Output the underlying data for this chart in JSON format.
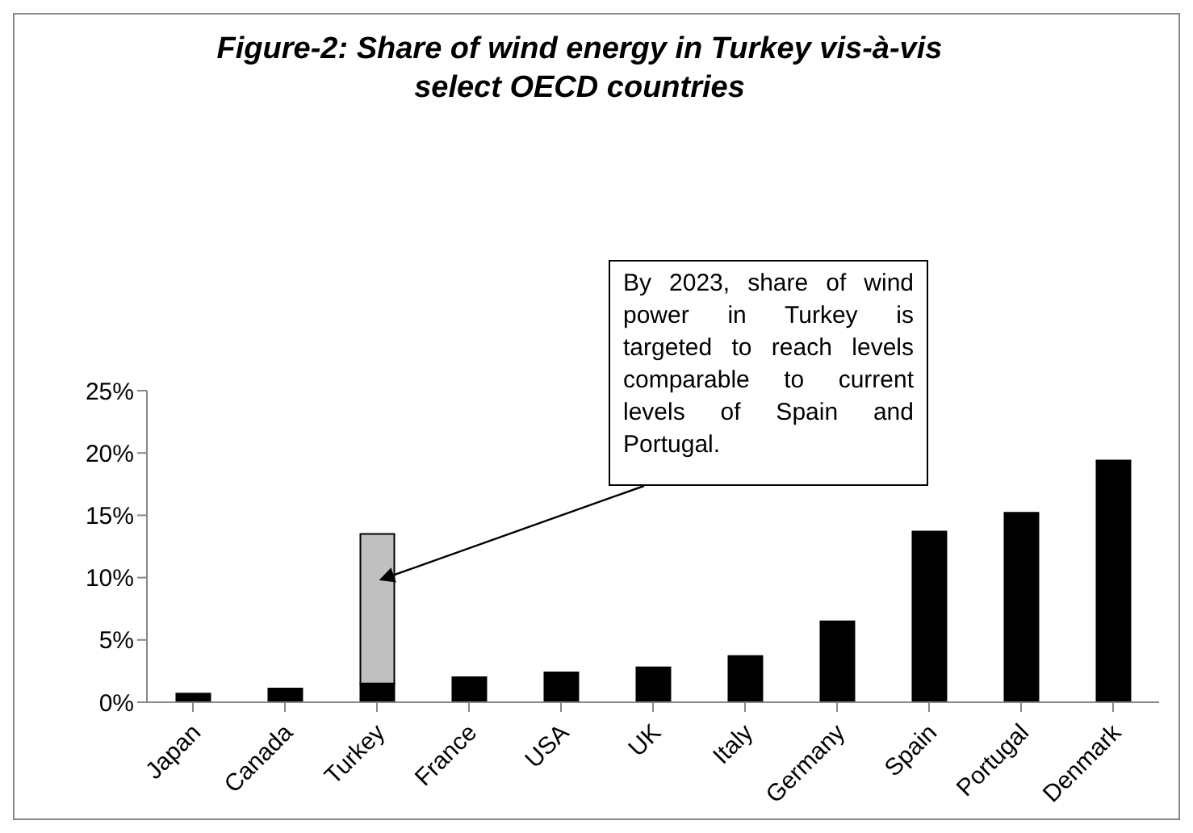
{
  "chart_data": {
    "type": "bar",
    "title": "Figure-2: Share of wind energy in Turkey vis-à-vis select OECD countries",
    "categories": [
      "Japan",
      "Canada",
      "Turkey",
      "France",
      "USA",
      "UK",
      "Italy",
      "Germany",
      "Spain",
      "Portugal",
      "Denmark"
    ],
    "stacked": true,
    "series": [
      {
        "color": "#000000",
        "values": [
          0.7,
          1.1,
          1.5,
          2.0,
          2.4,
          2.8,
          3.7,
          6.5,
          13.7,
          15.2,
          19.4
        ]
      },
      {
        "color": "#c0c0c0",
        "values": [
          null,
          null,
          12.0,
          null,
          null,
          null,
          null,
          null,
          null,
          null,
          null
        ]
      }
    ],
    "ylim": [
      0,
      25
    ],
    "yticks": [
      {
        "value": 0,
        "label": "0%"
      },
      {
        "value": 5,
        "label": "5%"
      },
      {
        "value": 10,
        "label": "10%"
      },
      {
        "value": 15,
        "label": "15%"
      },
      {
        "value": 20,
        "label": "20%"
      },
      {
        "value": 25,
        "label": "25%"
      }
    ],
    "grid": false,
    "legend": false,
    "annotations": [
      "By 2023, share of wind power in Turkey is targeted to reach levels comparable to current levels of Spain and Portugal."
    ]
  }
}
